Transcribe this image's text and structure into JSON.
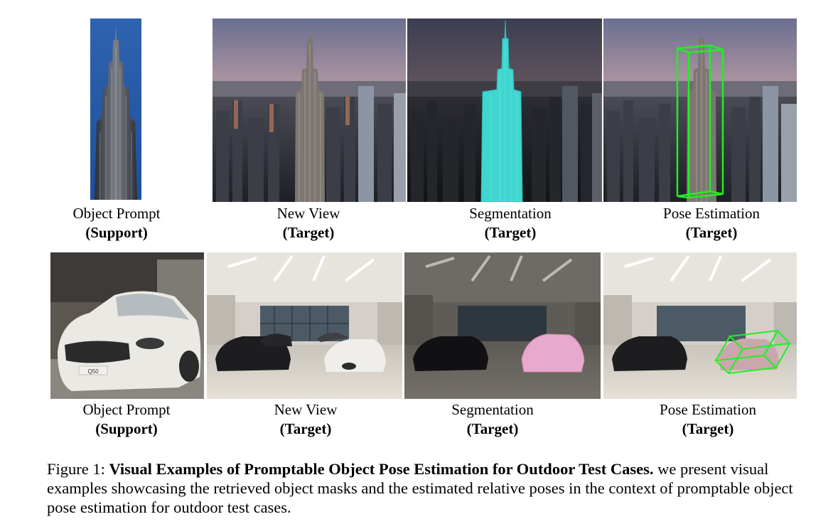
{
  "rows": [
    {
      "panels": [
        {
          "label": "Object Prompt",
          "sublabel": "(Support)"
        },
        {
          "label": "New View",
          "sublabel": "(Target)"
        },
        {
          "label": "Segmentation",
          "sublabel": "(Target)"
        },
        {
          "label": "Pose Estimation",
          "sublabel": "(Target)"
        }
      ]
    },
    {
      "panels": [
        {
          "label": "Object Prompt",
          "sublabel": "(Support)"
        },
        {
          "label": "New View",
          "sublabel": "(Target)"
        },
        {
          "label": "Segmentation",
          "sublabel": "(Target)"
        },
        {
          "label": "Pose Estimation",
          "sublabel": "(Target)"
        }
      ]
    }
  ],
  "car_plate": "Q50",
  "caption": {
    "prefix": "Figure 1: ",
    "bold": "Visual Examples of Promptable Object Pose Estimation for Outdoor Test Cases.",
    "rest": " we present visual examples showcasing the retrieved object masks and the estimated relative poses in the context of promptable object pose estimation for outdoor test cases."
  },
  "colors": {
    "segmentation_building": "#3fd6cf",
    "segmentation_car": "#e7a9cc",
    "pose_box": "#22ee22"
  }
}
